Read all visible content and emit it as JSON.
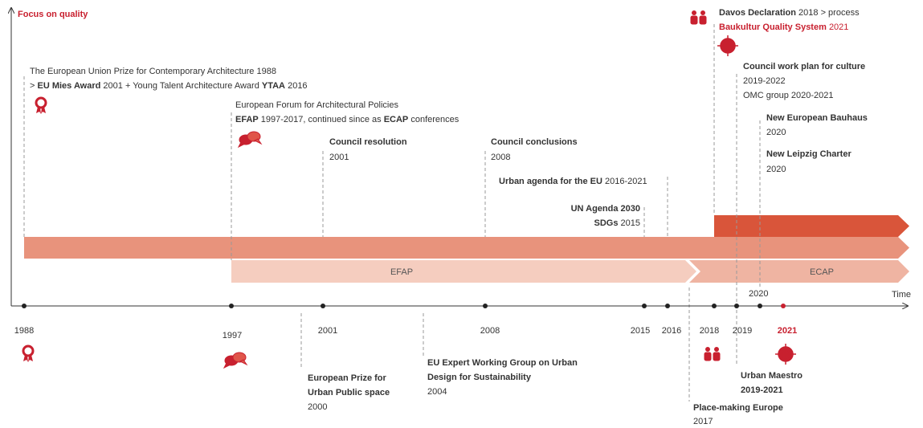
{
  "axis_title": "Focus on quality",
  "time_label": "Time",
  "years": [
    "1988",
    "1997",
    "2001",
    "2008",
    "2015",
    "2016",
    "2018",
    "2019",
    "2021"
  ],
  "year_above": "2020",
  "bands": [
    "EFAP",
    "ECAP"
  ],
  "above": [
    {
      "lines": [
        [
          "The European Union Prize for Contemporary Architecture 1988"
        ],
        [
          ">",
          "EU Mies Award",
          "2001 + Young Talent Architecture Award",
          "YTAA",
          "2016"
        ]
      ]
    },
    {
      "lines": [
        [
          "European Forum for Architectural Policies"
        ],
        [
          "EFAP",
          "1997-2017, continued since as",
          "ECAP",
          "conferences"
        ]
      ]
    },
    {
      "lines": [
        [
          "Council resolution"
        ],
        [
          "2001"
        ]
      ]
    },
    {
      "lines": [
        [
          "Council conclusions"
        ],
        [
          "2008"
        ]
      ]
    },
    {
      "lines": [
        [
          "Urban agenda for the EU",
          "2016-2021"
        ]
      ]
    },
    {
      "lines": [
        [
          "UN Agenda 2030"
        ],
        [
          "SDGs",
          "2015"
        ]
      ]
    },
    {
      "lines": [
        [
          "Davos Declaration",
          "2018 > process"
        ],
        [
          "Baukultur Quality System",
          "2021"
        ]
      ]
    },
    {
      "lines": [
        [
          "Council work plan for culture"
        ],
        [
          "2019-2022"
        ],
        [
          "OMC group 2020-2021"
        ]
      ]
    },
    {
      "lines": [
        [
          "New European Bauhaus"
        ],
        [
          "2020"
        ],
        [
          "New Leipzig Charter"
        ],
        [
          "2020"
        ]
      ]
    }
  ],
  "below": [
    {
      "lines": [
        [
          "European Prize for"
        ],
        [
          "Urban Public space"
        ],
        [
          "2000"
        ]
      ]
    },
    {
      "lines": [
        [
          "EU Expert Working Group on Urban"
        ],
        [
          "Design for Sustainability"
        ],
        [
          "2004"
        ]
      ]
    },
    {
      "lines": [
        [
          "Place-making Europe"
        ],
        [
          "2017"
        ]
      ]
    },
    {
      "lines": [
        [
          "Urban Maestro"
        ],
        [
          "2019-2021"
        ]
      ]
    }
  ]
}
